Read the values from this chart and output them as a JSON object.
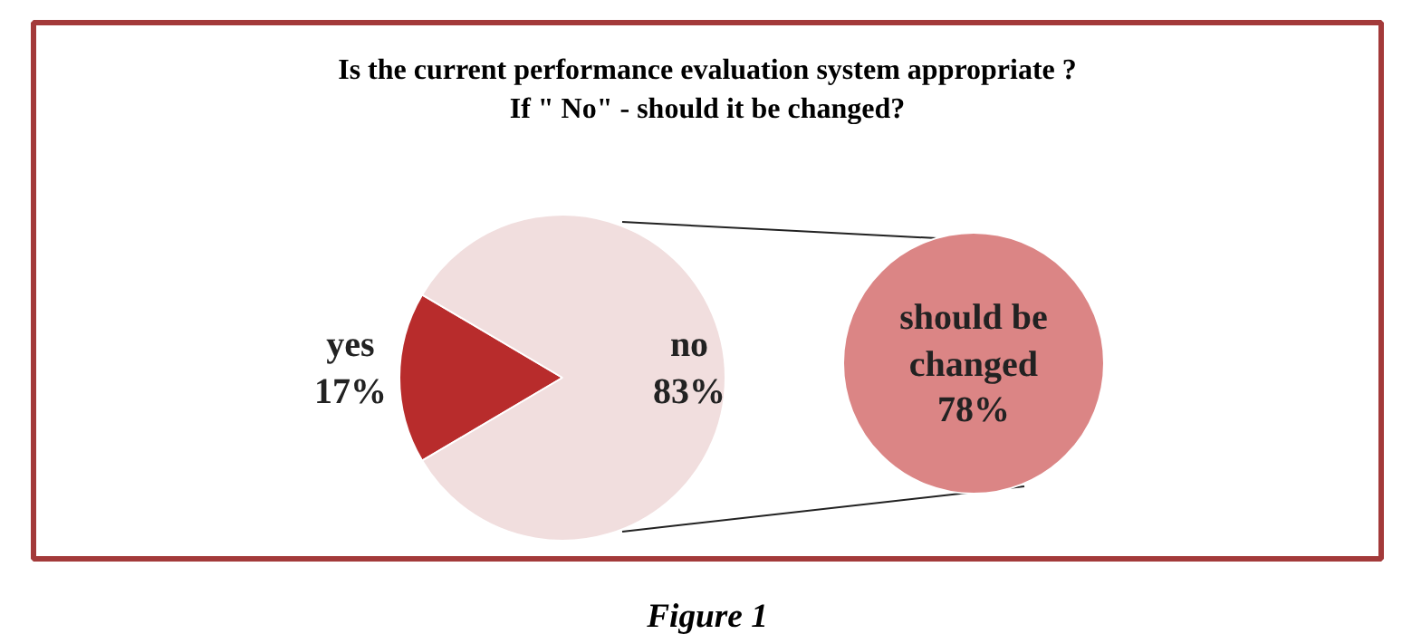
{
  "chart_data": [
    {
      "type": "pie",
      "title": "Is the current performance evaluation system appropriate ?\nIf \" No\" - should it be changed?",
      "categories": [
        "yes",
        "no"
      ],
      "values": [
        17,
        83
      ],
      "colors": [
        "#b82c2c",
        "#f1dede"
      ],
      "data_labels": true,
      "value_labels": [
        "17%",
        "83%"
      ],
      "annotations": [
        "Figure 1"
      ]
    },
    {
      "type": "other",
      "categories": [
        "should be\nchanged"
      ],
      "values": [
        78
      ],
      "colors": [
        "#db8585"
      ],
      "data_labels": true,
      "value_labels": [
        "78%"
      ]
    }
  ]
}
